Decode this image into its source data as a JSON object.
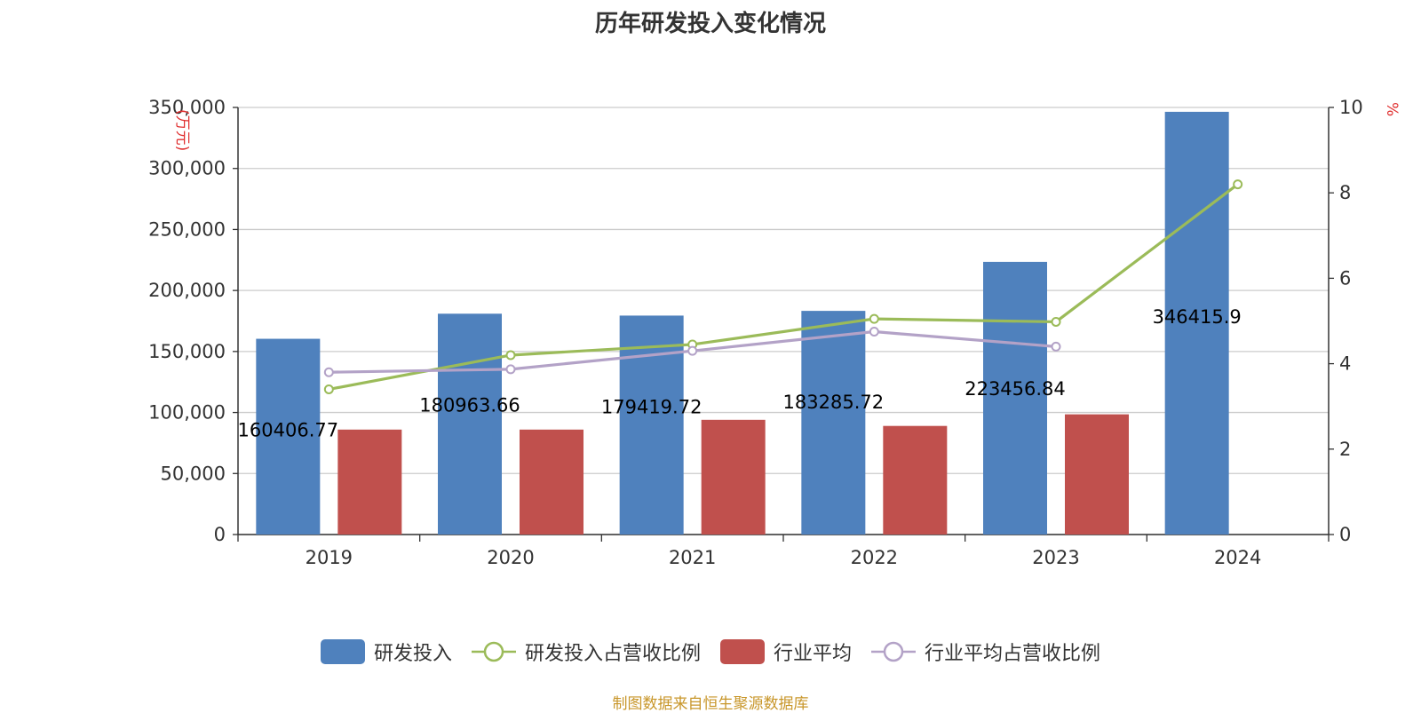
{
  "chart_data": {
    "type": "bar",
    "title": "历年研发投入变化情况",
    "categories": [
      "2019",
      "2020",
      "2021",
      "2022",
      "2023",
      "2024"
    ],
    "series": [
      {
        "name": "研发投入",
        "kind": "bar",
        "axis": "left",
        "color": "#4f81bd",
        "values": [
          160406.77,
          180963.66,
          179419.72,
          183285.72,
          223456.84,
          346415.9
        ],
        "labels": [
          "160406.77",
          "180963.66",
          "179419.72",
          "183285.72",
          "223456.84",
          "346415.9"
        ]
      },
      {
        "name": "研发投入占营收比例",
        "kind": "line",
        "axis": "right",
        "color": "#9bbb59",
        "values": [
          3.4,
          4.2,
          4.45,
          5.05,
          4.98,
          8.2
        ]
      },
      {
        "name": "行业平均",
        "kind": "bar",
        "axis": "left",
        "color": "#c0504d",
        "values": [
          86000,
          86000,
          94000,
          89000,
          98500,
          null
        ]
      },
      {
        "name": "行业平均占营收比例",
        "kind": "line",
        "axis": "right",
        "color": "#b3a2c7",
        "values": [
          3.8,
          3.87,
          4.3,
          4.75,
          4.4,
          null
        ]
      }
    ],
    "y_left": {
      "min": 0,
      "max": 350000,
      "step": 50000,
      "unit": "(万元)",
      "tick_labels": [
        "0",
        "50,000",
        "100,000",
        "150,000",
        "200,000",
        "250,000",
        "300,000",
        "350,000"
      ]
    },
    "y_right": {
      "min": 0,
      "max": 10,
      "step": 2,
      "unit": "%",
      "tick_labels": [
        "0",
        "2",
        "4",
        "6",
        "8",
        "10"
      ]
    },
    "grid": true,
    "legend": "bottom-center"
  },
  "source": "制图数据来自恒生聚源数据库"
}
